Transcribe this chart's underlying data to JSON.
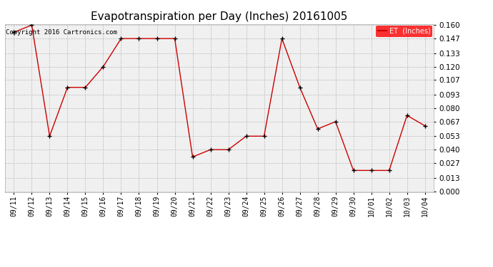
{
  "title": "Evapotranspiration per Day (Inches) 20161005",
  "copyright_text": "Copyright 2016 Cartronics.com",
  "legend_label": "ET  (Inches)",
  "legend_bg": "#ff0000",
  "legend_text_color": "#ffffff",
  "x_labels": [
    "09/11",
    "09/12",
    "09/13",
    "09/14",
    "09/15",
    "09/16",
    "09/17",
    "09/18",
    "09/19",
    "09/20",
    "09/21",
    "09/22",
    "09/23",
    "09/24",
    "09/25",
    "09/26",
    "09/27",
    "09/28",
    "09/29",
    "09/30",
    "10/01",
    "10/02",
    "10/03",
    "10/04"
  ],
  "y_values": [
    0.153,
    0.16,
    0.053,
    0.1,
    0.1,
    0.12,
    0.147,
    0.147,
    0.147,
    0.147,
    0.033,
    0.04,
    0.04,
    0.053,
    0.053,
    0.147,
    0.1,
    0.06,
    0.067,
    0.02,
    0.02,
    0.02,
    0.073,
    0.063
  ],
  "line_color": "#cc0000",
  "marker": "+",
  "marker_size": 4,
  "marker_color": "#000000",
  "y_ticks": [
    0.0,
    0.013,
    0.027,
    0.04,
    0.053,
    0.067,
    0.08,
    0.093,
    0.107,
    0.12,
    0.133,
    0.147,
    0.16
  ],
  "y_min": 0.0,
  "y_max": 0.16,
  "bg_color": "#ffffff",
  "plot_bg_color": "#f0f0f0",
  "grid_color": "#bbbbbb",
  "title_fontsize": 11,
  "copyright_fontsize": 6.5,
  "tick_fontsize": 7,
  "y_tick_fontsize": 7.5
}
